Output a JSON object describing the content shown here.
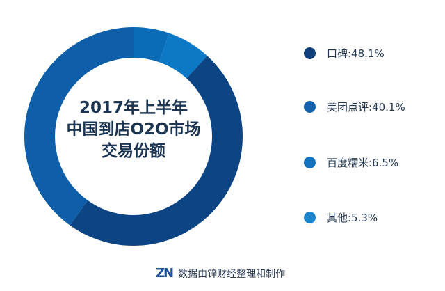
{
  "chart_data": {
    "type": "pie",
    "donut": true,
    "title": "2017年上半年\n中国到店O2O市场\n交易份额",
    "title_lines": [
      "2017年上半年",
      "中国到店O2O市场",
      "交易份额"
    ],
    "legend_position": "right",
    "slices": [
      {
        "name": "其他",
        "value": 5.3,
        "label": "其他:5.3%",
        "color": "#0a6bb6",
        "dot_color": "#1a86d0"
      },
      {
        "name": "百度糯米",
        "value": 6.5,
        "label": "百度糯米:6.5%",
        "color": "#0b79c6",
        "dot_color": "#1473be"
      },
      {
        "name": "口碑",
        "value": 48.1,
        "label": "口碑:48.1%",
        "color": "#0d4483",
        "dot_color": "#0f3f7a"
      },
      {
        "name": "美团点评",
        "value": 40.1,
        "label": "美团点评:40.1%",
        "color": "#0f5ea9",
        "dot_color": "#1262ad"
      }
    ],
    "legend_order": [
      2,
      3,
      1,
      0
    ]
  },
  "footer": {
    "logo": "ZN",
    "source": "数据由锌财经整理和制作"
  }
}
